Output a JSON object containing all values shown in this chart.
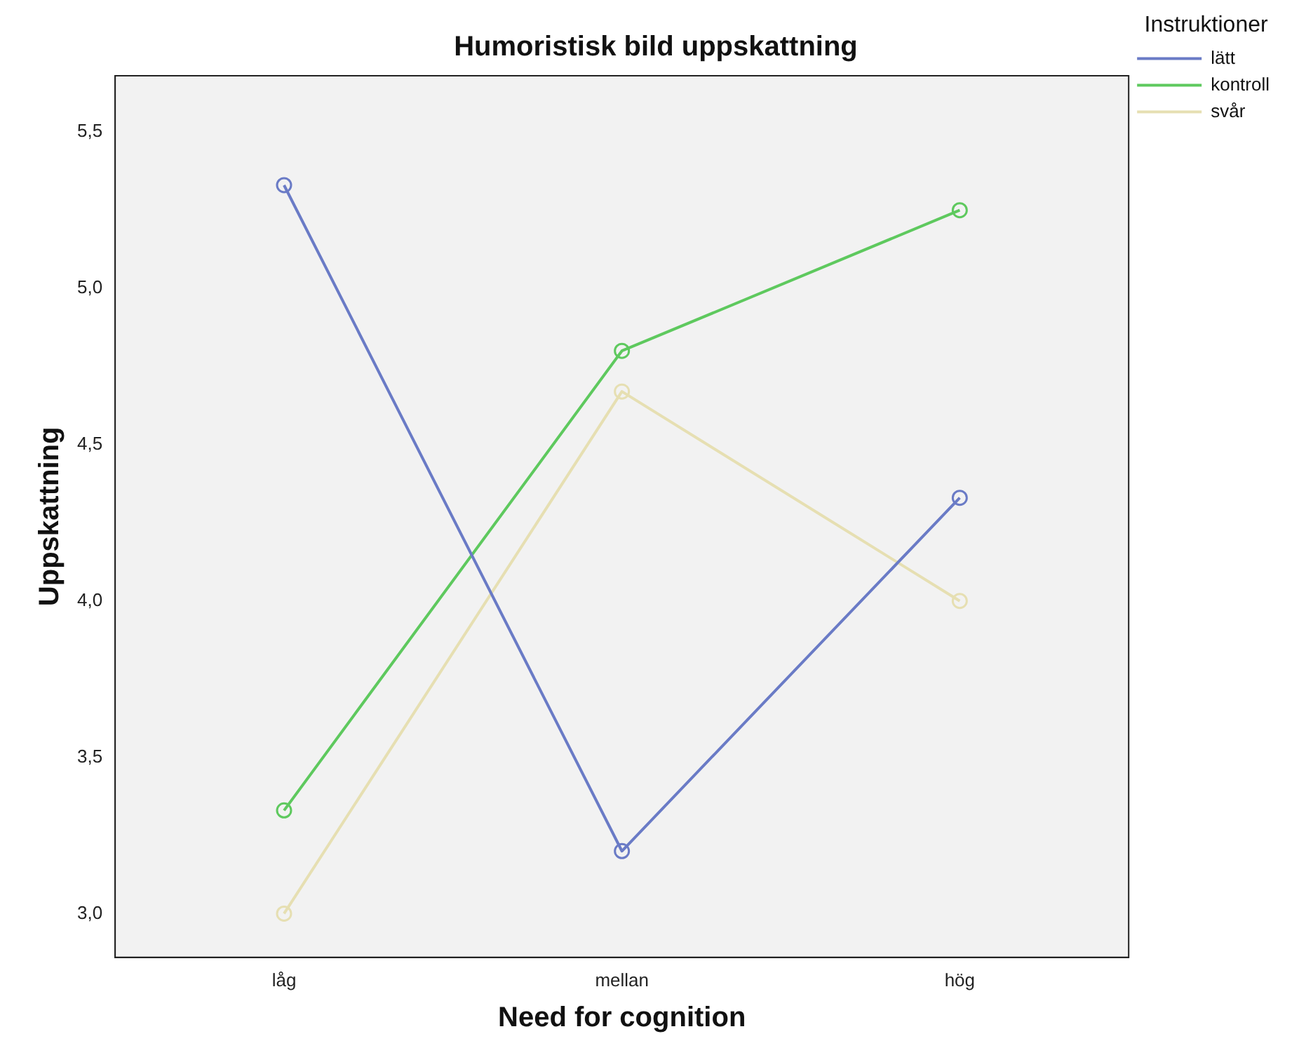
{
  "chart_data": {
    "type": "line",
    "title": "Humoristisk bild uppskattning",
    "xlabel": "Need for cognition",
    "ylabel": "Uppskattning",
    "legend_title": "Instruktioner",
    "categories": [
      "låg",
      "mellan",
      "hög"
    ],
    "series": [
      {
        "name": "lätt",
        "color": "#6a7bc6",
        "values": [
          5.33,
          3.2,
          4.33
        ]
      },
      {
        "name": "kontroll",
        "color": "#5ec95e",
        "values": [
          3.33,
          4.8,
          5.25
        ]
      },
      {
        "name": "svår",
        "color": "#e6dfb2",
        "values": [
          3.0,
          4.67,
          4.0
        ]
      }
    ],
    "ylim": [
      2.86,
      5.68
    ],
    "yticks": [
      {
        "value": 3,
        "label": "3,0"
      },
      {
        "value": 3.5,
        "label": "3,5"
      },
      {
        "value": 4,
        "label": "4,0"
      },
      {
        "value": 4.5,
        "label": "4,5"
      },
      {
        "value": 5,
        "label": "5,0"
      },
      {
        "value": 5.5,
        "label": "5,5"
      }
    ],
    "grid": false,
    "legend": "top right",
    "marker": "circle",
    "line_style": "solid"
  }
}
